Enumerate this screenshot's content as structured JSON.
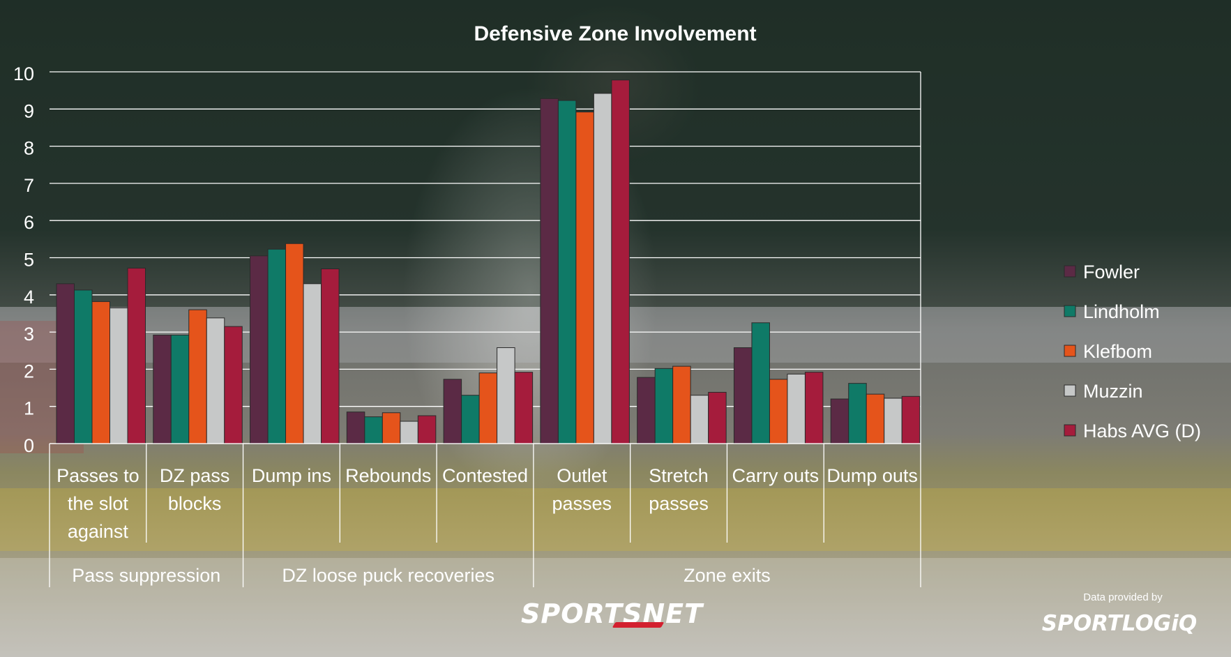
{
  "chart_data": {
    "type": "bar",
    "title": "Defensive Zone Involvement",
    "ylim": [
      0,
      10
    ],
    "yticks": [
      "0",
      "1",
      "2",
      "3",
      "4",
      "5",
      "6",
      "7",
      "8",
      "9",
      "10"
    ],
    "grid": true,
    "legend_position": "right",
    "categories": [
      [
        "Passes to",
        "the slot",
        "against"
      ],
      [
        "DZ pass",
        "blocks"
      ],
      [
        "Dump ins"
      ],
      [
        "Rebounds"
      ],
      [
        "Contested"
      ],
      [
        "Outlet",
        "passes"
      ],
      [
        "Stretch",
        "passes"
      ],
      [
        "Carry outs"
      ],
      [
        "Dump outs"
      ]
    ],
    "groups": [
      {
        "label": "Pass suppression",
        "start": 0,
        "end": 2
      },
      {
        "label": "DZ loose puck recoveries",
        "start": 2,
        "end": 5
      },
      {
        "label": "Zone exits",
        "start": 5,
        "end": 9
      }
    ],
    "series": [
      {
        "name": "Fowler",
        "color": "#5b2a45",
        "values": [
          4.3,
          2.92,
          5.05,
          0.85,
          1.73,
          9.28,
          1.78,
          2.58,
          1.2
        ]
      },
      {
        "name": "Lindholm",
        "color": "#0f7a67",
        "values": [
          4.13,
          2.92,
          5.23,
          0.72,
          1.3,
          9.23,
          2.02,
          3.25,
          1.62
        ]
      },
      {
        "name": "Klefbom",
        "color": "#e5541b",
        "values": [
          3.82,
          3.6,
          5.38,
          0.83,
          1.9,
          8.92,
          2.08,
          1.73,
          1.33
        ]
      },
      {
        "name": "Muzzin",
        "color": "#c6c8c8",
        "values": [
          3.65,
          3.38,
          4.3,
          0.6,
          2.58,
          9.42,
          1.3,
          1.87,
          1.22
        ]
      },
      {
        "name": "Habs AVG (D)",
        "color": "#a51c3c",
        "values": [
          4.72,
          3.15,
          4.7,
          0.75,
          1.92,
          9.78,
          1.38,
          1.92,
          1.27
        ]
      }
    ]
  },
  "footer": {
    "sportsnet_logo": "SPORTSNET",
    "data_provided_by": "Data provided by",
    "sportlogiq_logo": "SPORTLOGiQ"
  }
}
